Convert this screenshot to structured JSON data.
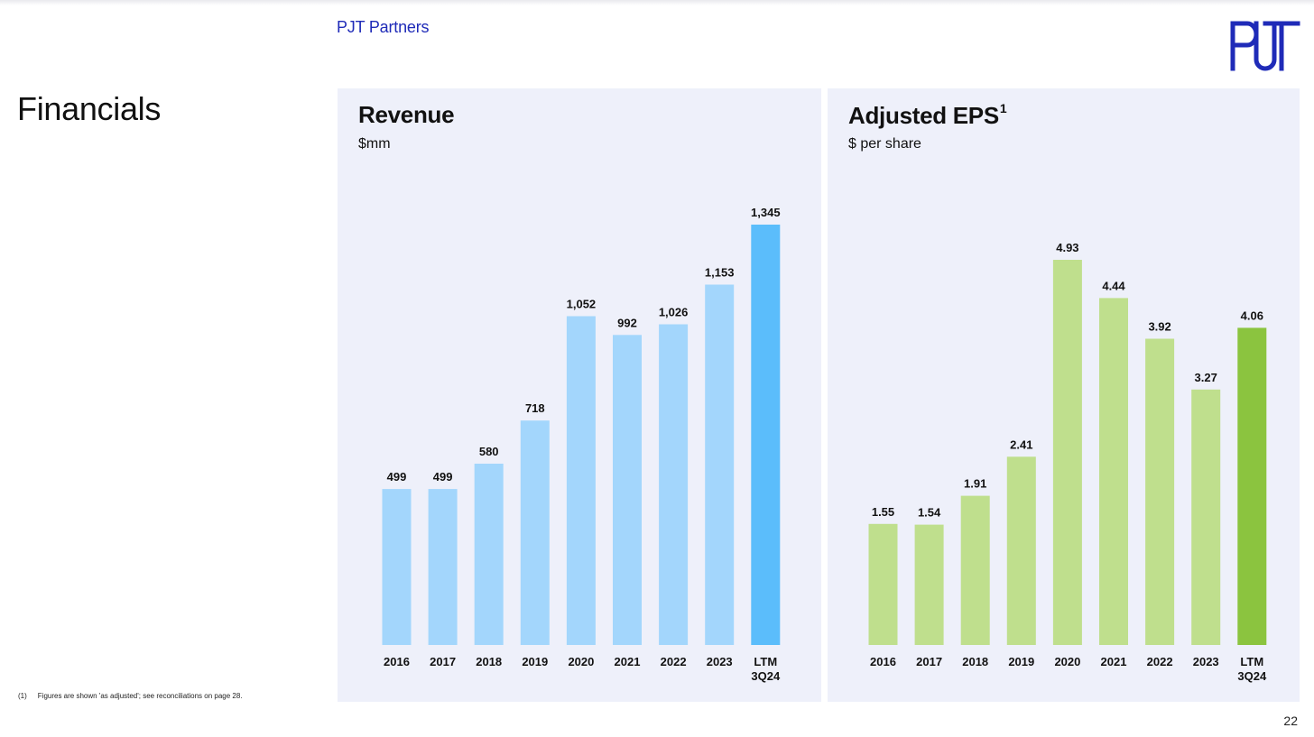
{
  "header": {
    "brand_name": "PJT Partners",
    "logo_text": "PJT"
  },
  "page": {
    "title": "Financials",
    "number": "22"
  },
  "footnote": {
    "number": "(1)",
    "text": "Figures are shown 'as adjusted'; see reconciliations on page 28."
  },
  "chart_data": [
    {
      "type": "bar",
      "title": "Revenue",
      "subtitle": "$mm",
      "categories": [
        "2016",
        "2017",
        "2018",
        "2019",
        "2020",
        "2021",
        "2022",
        "2023",
        "LTM 3Q24"
      ],
      "values": [
        499,
        499,
        580,
        718,
        1052,
        992,
        1026,
        1153,
        1345
      ],
      "data_labels": [
        "499",
        "499",
        "580",
        "718",
        "1,052",
        "992",
        "1,026",
        "1,153",
        "1,345"
      ],
      "ylim": [
        0,
        1345
      ],
      "grid": false,
      "colors": {
        "bar": "#a3d6fc",
        "highlight_bar": "#5bbdfb"
      },
      "highlight_index": 8
    },
    {
      "type": "bar",
      "title": "Adjusted EPS",
      "title_superscript": "1",
      "subtitle": "$ per share",
      "categories": [
        "2016",
        "2017",
        "2018",
        "2019",
        "2020",
        "2021",
        "2022",
        "2023",
        "LTM 3Q24"
      ],
      "values": [
        1.55,
        1.54,
        1.91,
        2.41,
        4.93,
        4.44,
        3.92,
        3.27,
        4.06
      ],
      "data_labels": [
        "1.55",
        "1.54",
        "1.91",
        "2.41",
        "4.93",
        "4.44",
        "3.92",
        "3.27",
        "4.06"
      ],
      "ylim": [
        0,
        4.93
      ],
      "grid": false,
      "colors": {
        "bar": "#bfdf8d",
        "highlight_bar": "#8bc43f"
      },
      "highlight_index": 8
    }
  ],
  "colors": {
    "brand": "#1f2bb8",
    "panel_background": "#eef0fa"
  }
}
